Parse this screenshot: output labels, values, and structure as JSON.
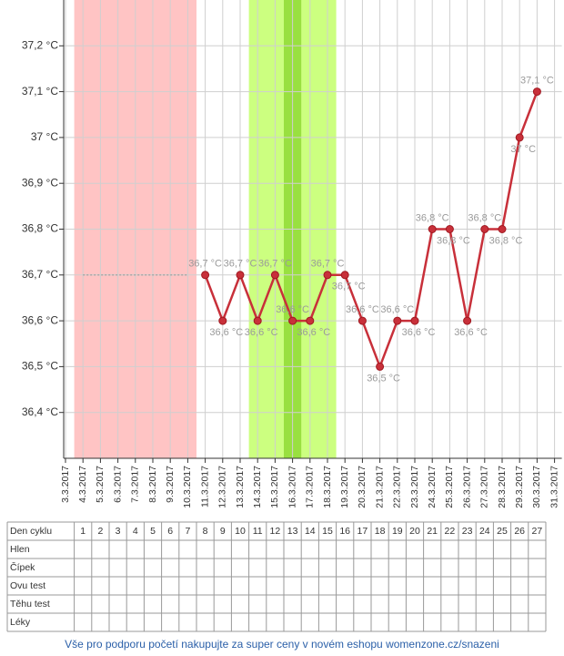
{
  "chart_data": {
    "type": "line",
    "categories": [
      "3.3.2017",
      "4.3.2017",
      "5.3.2017",
      "6.3.2017",
      "7.3.2017",
      "8.3.2017",
      "9.3.2017",
      "10.3.2017",
      "11.3.2017",
      "12.3.2017",
      "13.3.2017",
      "14.3.2017",
      "15.3.2017",
      "16.3.2017",
      "17.3.2017",
      "18.3.2017",
      "19.3.2017",
      "20.3.2017",
      "21.3.2017",
      "22.3.2017",
      "23.3.2017",
      "24.3.2017",
      "25.3.2017",
      "26.3.2017",
      "27.3.2017",
      "28.3.2017",
      "29.3.2017",
      "30.3.2017",
      "31.3.2017"
    ],
    "series": [
      {
        "color": "#a8a8a8",
        "dashed": true,
        "values": [
          null,
          36.7,
          36.7,
          36.7,
          36.7,
          36.7,
          36.7,
          36.7,
          null,
          null,
          null,
          null,
          null,
          null,
          null,
          null,
          null,
          null,
          null,
          null,
          null,
          null,
          null,
          null,
          null,
          null,
          null,
          null,
          null
        ]
      },
      {
        "color": "#c8303a",
        "values": [
          null,
          null,
          null,
          null,
          null,
          null,
          null,
          null,
          36.7,
          36.6,
          36.7,
          36.6,
          36.7,
          36.6,
          36.6,
          36.7,
          36.7,
          36.6,
          36.5,
          36.6,
          36.6,
          36.8,
          36.8,
          36.6,
          36.8,
          36.8,
          37.0,
          37.1,
          null
        ],
        "value_labels": [
          null,
          null,
          null,
          null,
          null,
          null,
          null,
          null,
          "36,7 °C",
          "36,6 °C",
          "36,7 °C",
          "36,6 °C",
          "36,7 °C",
          "36,6 °C",
          "36,6 °C",
          "36,7 °C",
          "36,7 °C",
          "36,6 °C",
          "36,5 °C",
          "36,6 °C",
          "36,6 °C",
          "36,8 °C",
          "36,8 °C",
          "36,6 °C",
          "36,8 °C",
          "36,8 °C",
          "37 °C",
          "37,1 °C",
          null
        ]
      }
    ],
    "bands": [
      {
        "start": "4.3.2017",
        "end": "10.3.2017",
        "color": "#ffc4c4"
      },
      {
        "start": "14.3.2017",
        "end": "18.3.2017",
        "color": "#ccff80"
      },
      {
        "start": "16.3.2017",
        "end": "16.3.2017",
        "color": "#99e040"
      }
    ],
    "ylim": [
      36.3,
      37.3
    ],
    "yticks": [
      {
        "value": 36.4,
        "label": "36,4 °C"
      },
      {
        "value": 36.5,
        "label": "36,5 °C"
      },
      {
        "value": 36.6,
        "label": "36,6 °C"
      },
      {
        "value": 36.7,
        "label": "36,7 °C"
      },
      {
        "value": 36.8,
        "label": "36,8 °C"
      },
      {
        "value": 36.9,
        "label": "36,9 °C"
      },
      {
        "value": 37.0,
        "label": "37 °C"
      },
      {
        "value": 37.1,
        "label": "37,1 °C"
      },
      {
        "value": 37.2,
        "label": "37,2 °C"
      }
    ],
    "grid": true
  },
  "table": {
    "header": "Den cyklu",
    "days": [
      1,
      2,
      3,
      4,
      5,
      6,
      7,
      8,
      9,
      10,
      11,
      12,
      13,
      14,
      15,
      16,
      17,
      18,
      19,
      20,
      21,
      22,
      23,
      24,
      25,
      26,
      27
    ],
    "rows": [
      "Hlen",
      "Čípek",
      "Ovu test",
      "Těhu test",
      "Léky"
    ]
  },
  "footer": "Vše pro podporu početí nakupujte za super ceny v novém eshopu womenzone.cz/snazeni"
}
